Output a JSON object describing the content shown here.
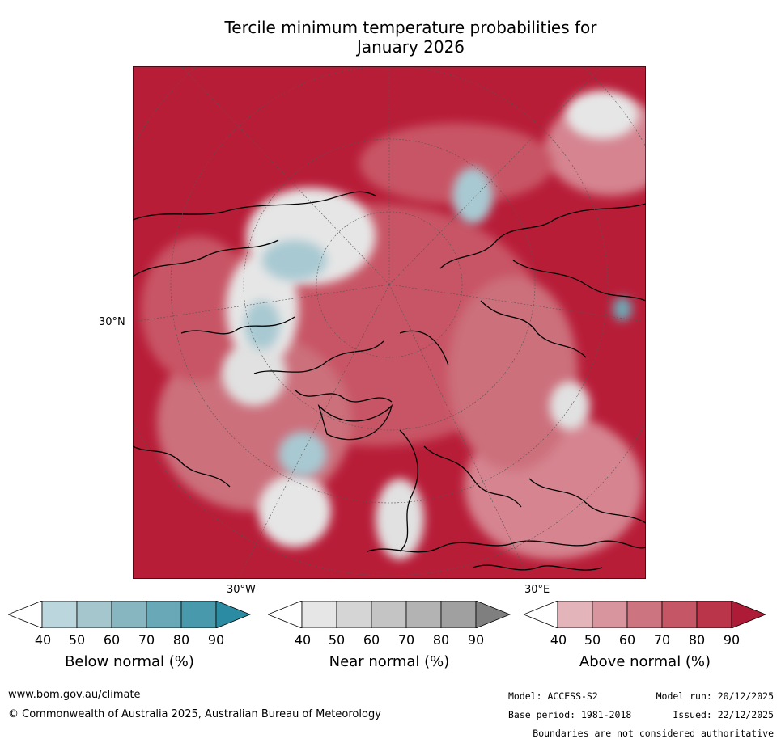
{
  "title_line1": "Tercile minimum temperature probabilities for",
  "title_line2": "January 2026",
  "map": {
    "projection": "north-polar-stereographic",
    "labels": {
      "lat30n": "30°N",
      "lon30w": "30°W",
      "lon30e": "30°E"
    },
    "colors": {
      "above_dominant": "#b81d38",
      "above_light": "#d97f8c",
      "near": "#e1e1e1",
      "below": "#a8c9d2"
    }
  },
  "colorbars": [
    {
      "title": "Below normal (%)",
      "ticks": [
        "40",
        "50",
        "60",
        "70",
        "80",
        "90"
      ],
      "colors": [
        "#ffffff",
        "#bcd6dd",
        "#a5c6cd",
        "#88b6c0",
        "#69a9b7",
        "#4899ab",
        "#2a8ba2"
      ]
    },
    {
      "title": "Near normal (%)",
      "ticks": [
        "40",
        "50",
        "60",
        "70",
        "80",
        "90"
      ],
      "colors": [
        "#ffffff",
        "#e6e6e6",
        "#d5d5d5",
        "#c4c4c4",
        "#b3b3b3",
        "#a0a0a0",
        "#7f7f7f"
      ]
    },
    {
      "title": "Above normal (%)",
      "ticks": [
        "40",
        "50",
        "60",
        "70",
        "80",
        "90"
      ],
      "colors": [
        "#ffffff",
        "#e3b5bb",
        "#d8959e",
        "#cc7581",
        "#c55665",
        "#ba3549",
        "#ad1b36"
      ]
    }
  ],
  "footer": {
    "url": "www.bom.gov.au/climate",
    "copyright": "© Commonwealth of Australia 2025, Australian Bureau of Meteorology",
    "model": "Model: ACCESS-S2",
    "base_period": "Base period: 1981-2018",
    "model_run": "Model run: 20/12/2025",
    "issued": "Issued: 22/12/2025",
    "disclaimer": "Boundaries are not considered authoritative"
  }
}
